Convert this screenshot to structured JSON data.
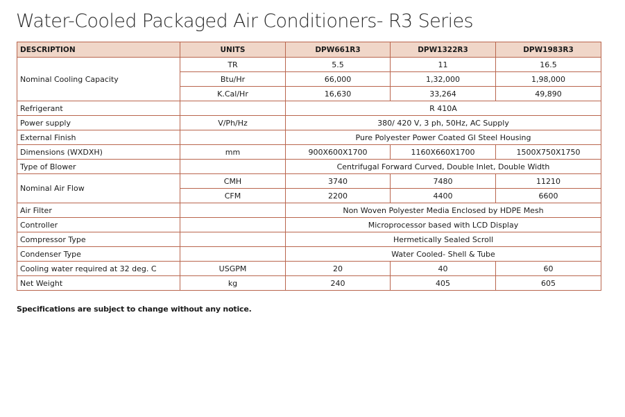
{
  "title": "Water-Cooled Packaged Air Conditioners- R3 Series",
  "headers": [
    "DESCRIPTION",
    "UNITS",
    "DPW661R3",
    "DPW1322R3",
    "DPW1983R3"
  ],
  "rows": {
    "cooling": {
      "label": "Nominal Cooling Capacity",
      "tr": {
        "unit": "TR",
        "v1": "5.5",
        "v2": "11",
        "v3": "16.5"
      },
      "btu": {
        "unit": "Btu/Hr",
        "v1": "66,000",
        "v2": "1,32,000",
        "v3": "1,98,000"
      },
      "kcal": {
        "unit": "K.Cal/Hr",
        "v1": "16,630",
        "v2": "33,264",
        "v3": "49,890"
      }
    },
    "refrigerant": {
      "label": "Refrigerant",
      "unit": "",
      "value": "R 410A"
    },
    "power_supply": {
      "label": "Power supply",
      "unit": "V/Ph/Hz",
      "value": "380/ 420 V, 3 ph, 50Hz, AC Supply"
    },
    "external_finish": {
      "label": "External Finish",
      "unit": "",
      "value": "Pure Polyester Power Coated GI Steel Housing"
    },
    "dimensions": {
      "label": "Dimensions (WXDXH)",
      "unit": "mm",
      "v1": "900X600X1700",
      "v2": "1160X660X1700",
      "v3": "1500X750X1750"
    },
    "blower": {
      "label": "Type of Blower",
      "unit": "",
      "value": "Centrifugal Forward Curved, Double Inlet, Double Width"
    },
    "airflow": {
      "label": "Nominal Air Flow",
      "cmh": {
        "unit": "CMH",
        "v1": "3740",
        "v2": "7480",
        "v3": "11210"
      },
      "cfm": {
        "unit": "CFM",
        "v1": "2200",
        "v2": "4400",
        "v3": "6600"
      }
    },
    "air_filter": {
      "label": "Air Filter",
      "unit": "",
      "value": "Non Woven Polyester Media Enclosed by HDPE Mesh"
    },
    "controller": {
      "label": "Controller",
      "unit": "",
      "value": "Microprocessor based with LCD Display"
    },
    "compressor": {
      "label": "Compressor Type",
      "unit": "",
      "value": "Hermetically Sealed Scroll"
    },
    "condenser": {
      "label": "Condenser Type",
      "unit": "",
      "value": "Water Cooled- Shell & Tube"
    },
    "cooling_water": {
      "label": "Cooling water required at 32 deg. C",
      "unit": "USGPM",
      "v1": "20",
      "v2": "40",
      "v3": "60"
    },
    "net_weight": {
      "label": "Net Weight",
      "unit": "kg",
      "v1": "240",
      "v2": "405",
      "v3": "605"
    }
  },
  "note": "Specifications are subject to change without any notice.",
  "colors": {
    "border": "#b9654d",
    "header_bg": "#f0d6c8"
  }
}
